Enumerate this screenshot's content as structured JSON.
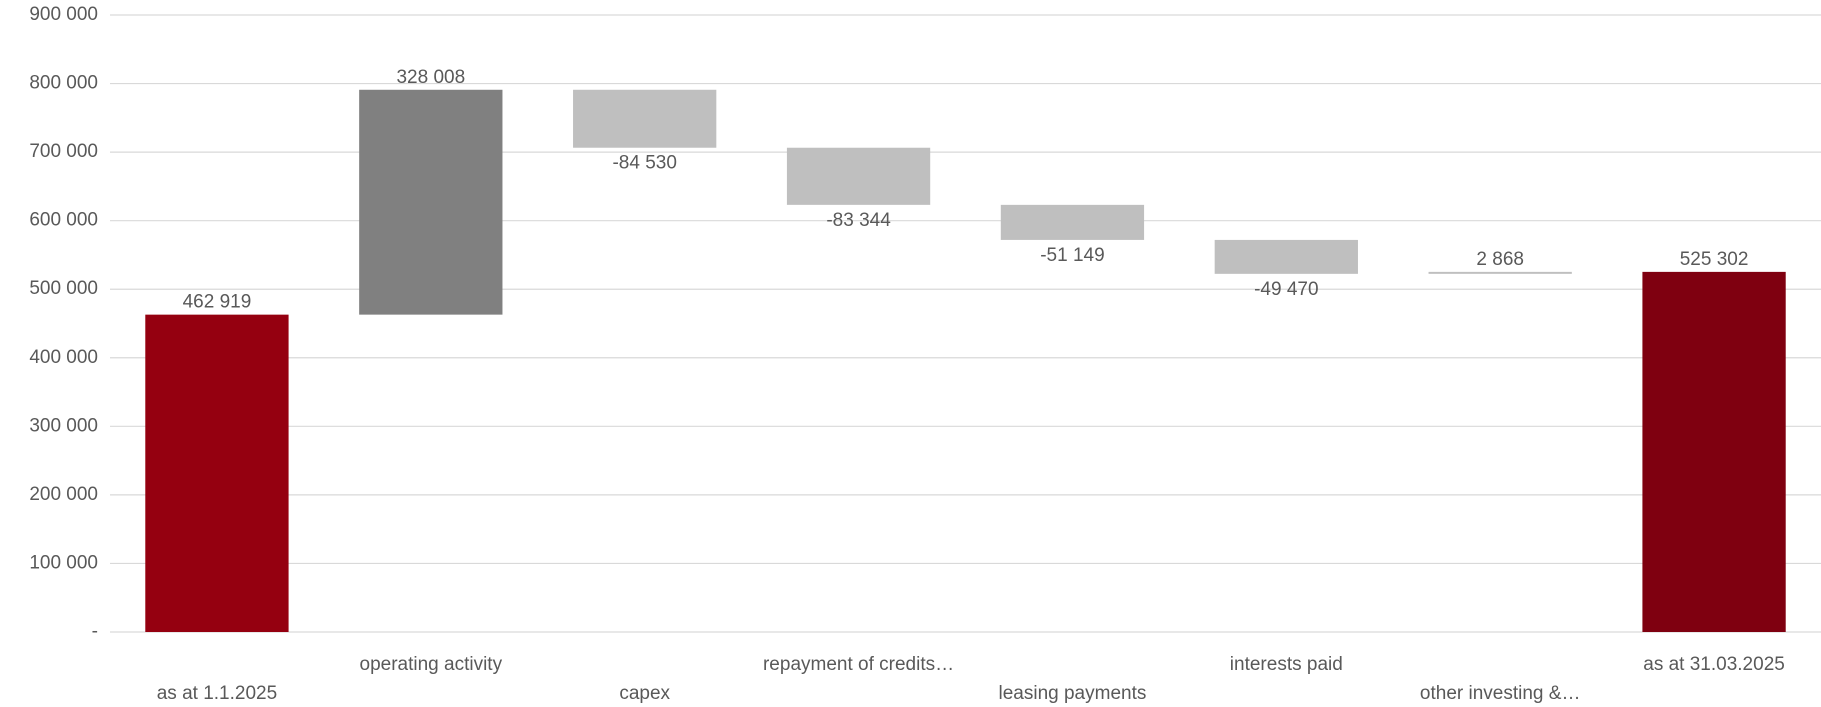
{
  "chart_data": {
    "type": "waterfall",
    "categories": [
      "as at 1.1.2025",
      "operating activity",
      "capex",
      "repayment of credits…",
      "leasing payments",
      "interests paid",
      "other investing &…",
      "as at 31.03.2025"
    ],
    "values": [
      462919,
      328008,
      -84530,
      -83344,
      -51149,
      -49470,
      2868,
      525302
    ],
    "value_labels": [
      "462 919",
      "328 008",
      "-84 530",
      "-83 344",
      "-51 149",
      "-49 470",
      "2 868",
      "525 302"
    ],
    "is_total": [
      true,
      false,
      false,
      false,
      false,
      false,
      false,
      true
    ],
    "colors": [
      "#950010",
      "#808080",
      "#bfbfbf",
      "#bfbfbf",
      "#bfbfbf",
      "#bfbfbf",
      "#bfbfbf",
      "#7f0010"
    ],
    "ylim": [
      0,
      900000
    ],
    "yticks": [
      {
        "value": 0,
        "label": "-"
      },
      {
        "value": 100000,
        "label": "100 000"
      },
      {
        "value": 200000,
        "label": "200 000"
      },
      {
        "value": 300000,
        "label": "300 000"
      },
      {
        "value": 400000,
        "label": "400 000"
      },
      {
        "value": 500000,
        "label": "500 000"
      },
      {
        "value": 600000,
        "label": "600 000"
      },
      {
        "value": 700000,
        "label": "700 000"
      },
      {
        "value": 800000,
        "label": "800 000"
      },
      {
        "value": 900000,
        "label": "900 000"
      }
    ],
    "grid": true
  }
}
